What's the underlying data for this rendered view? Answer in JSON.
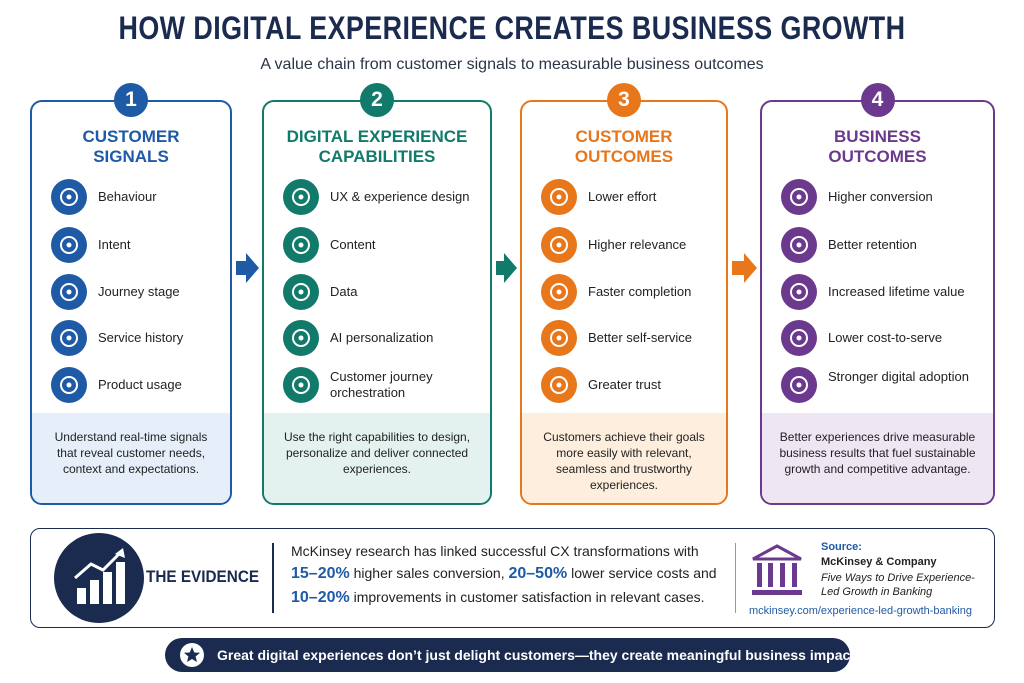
{
  "header": {
    "title": "HOW DIGITAL EXPERIENCE CREATES BUSINESS GROWTH",
    "subtitle": "A value chain from customer signals to measurable business outcomes"
  },
  "stages": [
    {
      "number": "1",
      "title": "CUSTOMER SIGNALS",
      "color": "#1f5aa6",
      "tint": "#e6eef9",
      "items": [
        "Behaviour",
        "Intent",
        "Journey stage",
        "Service history",
        "Product usage"
      ],
      "description": "Understand real-time signals that reveal customer needs, context and expectations."
    },
    {
      "number": "2",
      "title": "DIGITAL EXPERIENCE CAPABILITIES",
      "color": "#127a6a",
      "tint": "#e3f2ee",
      "items": [
        "UX & experience design",
        "Content",
        "Data",
        "AI personalization",
        "Customer journey orchestration"
      ],
      "description": "Use the right capabilities to design, personalize and deliver connected experiences."
    },
    {
      "number": "3",
      "title": "CUSTOMER OUTCOMES",
      "color": "#e8761b",
      "tint": "#fdeedd",
      "items": [
        "Lower effort",
        "Higher relevance",
        "Faster completion",
        "Better self-service",
        "Greater trust"
      ],
      "description": "Customers achieve their goals more easily with relevant, seamless and trustworthy experiences."
    },
    {
      "number": "4",
      "title": "BUSINESS OUTCOMES",
      "color": "#6b3a8e",
      "tint": "#efe6f4",
      "items": [
        "Higher conversion",
        "Better retention",
        "Increased lifetime value",
        "Lower cost-to-serve",
        "Stronger digital adoption"
      ],
      "description": "Better experiences drive measurable business results that fuel sustainable growth and competitive advantage."
    }
  ],
  "evidence": {
    "label": "THE EVIDENCE",
    "lines": [
      [
        "McKinsey research has linked successful CX transformations with"
      ],
      [
        {
          "text": "15–20%",
          "emphasis": true
        },
        " higher sales conversion, ",
        {
          "text": "20–50%",
          "emphasis": true
        },
        " lower service costs and"
      ],
      [
        {
          "text": "10–20%",
          "emphasis": true
        },
        " improvements in customer satisfaction in relevant cases."
      ]
    ],
    "source": {
      "label": "Source:",
      "publisher": "McKinsey & Company",
      "publication": "Five Ways to Drive Experience-Led Growth in Banking",
      "url": "mckinsey.com/experience-led-growth-banking"
    }
  },
  "banner": {
    "text": "Great digital experiences don’t just delight customers—they create meaningful business impact."
  }
}
